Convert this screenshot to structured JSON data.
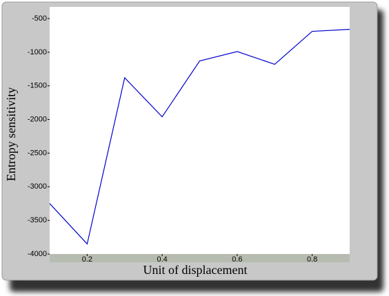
{
  "chart_data": {
    "type": "line",
    "xlabel": "Unit of displacement",
    "ylabel": "Entropy sensitivity",
    "x": [
      0.1,
      0.2,
      0.3,
      0.4,
      0.5,
      0.6,
      0.7,
      0.8,
      0.9
    ],
    "series": [
      {
        "color": "#0000cc",
        "values": [
          -3250,
          -3850,
          -1380,
          -1960,
          -1130,
          -990,
          -1180,
          -690,
          -660
        ]
      }
    ],
    "xlim": [
      0.1,
      0.9
    ],
    "xticks": [
      0.2,
      0.4,
      0.6,
      0.8
    ],
    "ylim": [
      -4000,
      -500
    ],
    "yticks": [
      -4000,
      -3500,
      -3000,
      -2500,
      -2000,
      -1500,
      -1000,
      -500
    ]
  }
}
